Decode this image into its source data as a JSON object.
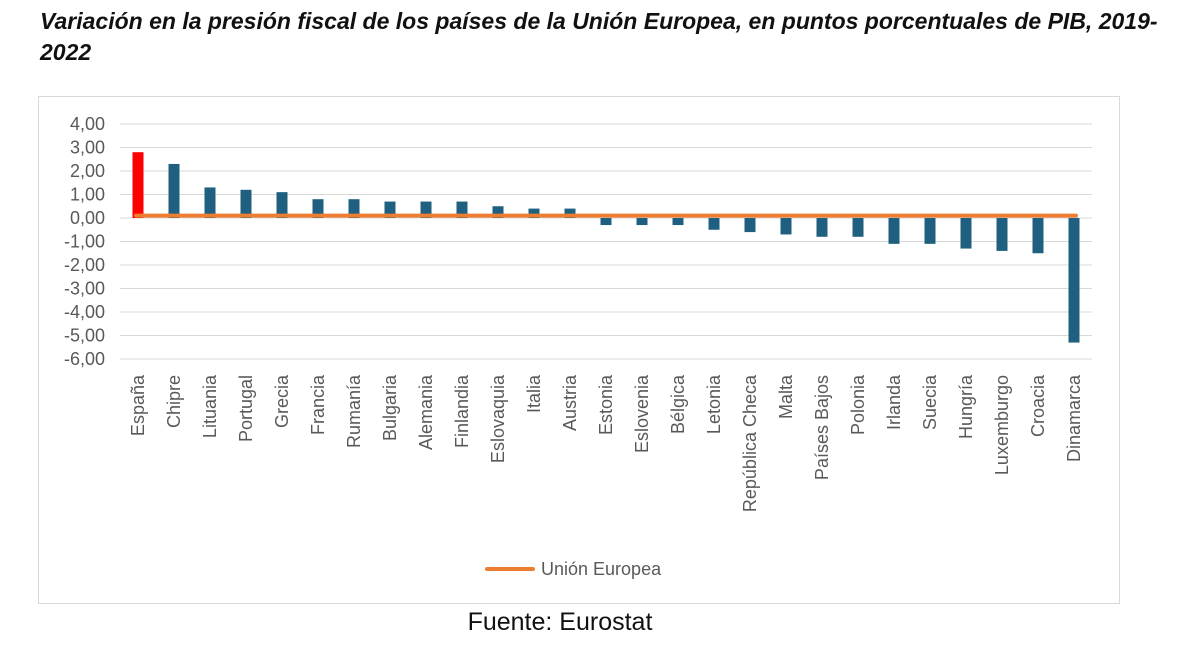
{
  "title": "Variación en la presión fiscal de los países de la Unión Europea, en puntos porcentuales de PIB, 2019-2022",
  "source": "Fuente: Eurostat",
  "legend": {
    "label": "Unión Europea"
  },
  "colors": {
    "bar": "#1f5f7f",
    "highlight": "#ff0000",
    "eu_line": "#ed7d31",
    "grid": "#d9d9d9",
    "tick_text": "#595959"
  },
  "chart_data": {
    "type": "bar",
    "title": "Variación en la presión fiscal de los países de la Unión Europea, en puntos porcentuales de PIB, 2019-2022",
    "xlabel": "",
    "ylabel": "",
    "ylim": [
      -6,
      4
    ],
    "yticks": [
      "4,00",
      "3,00",
      "2,00",
      "1,00",
      "0,00",
      "-1,00",
      "-2,00",
      "-3,00",
      "-4,00",
      "-5,00",
      "-6,00"
    ],
    "grid": true,
    "legend_position": "bottom",
    "categories": [
      "España",
      "Chipre",
      "Lituania",
      "Portugal",
      "Grecia",
      "Francia",
      "Rumanía",
      "Bulgaria",
      "Alemania",
      "Finlandia",
      "Eslovaquia",
      "Italia",
      "Austria",
      "Estonia",
      "Eslovenia",
      "Bélgica",
      "Letonia",
      "República Checa",
      "Malta",
      "Países Bajos",
      "Polonia",
      "Irlanda",
      "Suecia",
      "Hungría",
      "Luxemburgo",
      "Croacia",
      "Dinamarca"
    ],
    "values": [
      2.8,
      2.3,
      1.3,
      1.2,
      1.1,
      0.8,
      0.8,
      0.7,
      0.7,
      0.7,
      0.5,
      0.4,
      0.4,
      -0.3,
      -0.3,
      -0.3,
      -0.5,
      -0.6,
      -0.7,
      -0.8,
      -0.8,
      -1.1,
      -1.1,
      -1.3,
      -1.4,
      -1.5,
      -5.3
    ],
    "highlight": "España",
    "series": [
      {
        "name": "Unión Europea",
        "type": "line",
        "value": 0.1
      }
    ]
  }
}
